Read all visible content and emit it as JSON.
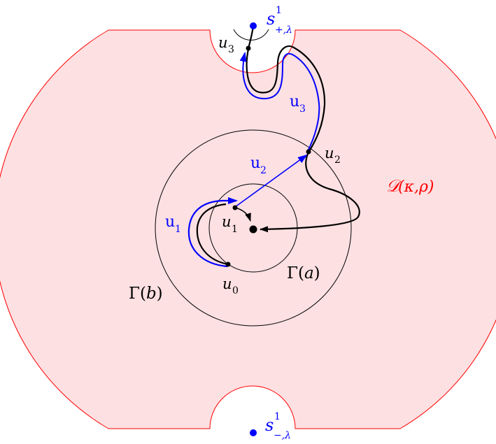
{
  "colors": {
    "region_fill": "#fde0e2",
    "region_stroke": "#ff0000",
    "blue": "#0000ff",
    "black": "#000000"
  },
  "labels": {
    "region": {
      "main": "𝒟",
      "args": "(κ,ρ)"
    },
    "gamma_a": {
      "main": "Γ(",
      "var": "a",
      "close": ")"
    },
    "gamma_b": {
      "main": "Γ(",
      "var": "b",
      "close": ")"
    },
    "s_plus": {
      "main": "s",
      "sup": "1",
      "sub": "+,λ"
    },
    "s_minus": {
      "main": "s",
      "sup": "1",
      "sub": "−,λ"
    },
    "point_u0": {
      "main": "u",
      "sub": "0"
    },
    "point_u1": {
      "main": "u",
      "sub": "1"
    },
    "point_u2": {
      "main": "u",
      "sub": "2"
    },
    "point_u3": {
      "main": "u",
      "sub": "3"
    },
    "path_u1": {
      "main": "u",
      "sub": "1"
    },
    "path_u2": {
      "main": "u",
      "sub": "2"
    },
    "path_u3": {
      "main": "u",
      "sub": "3"
    }
  }
}
